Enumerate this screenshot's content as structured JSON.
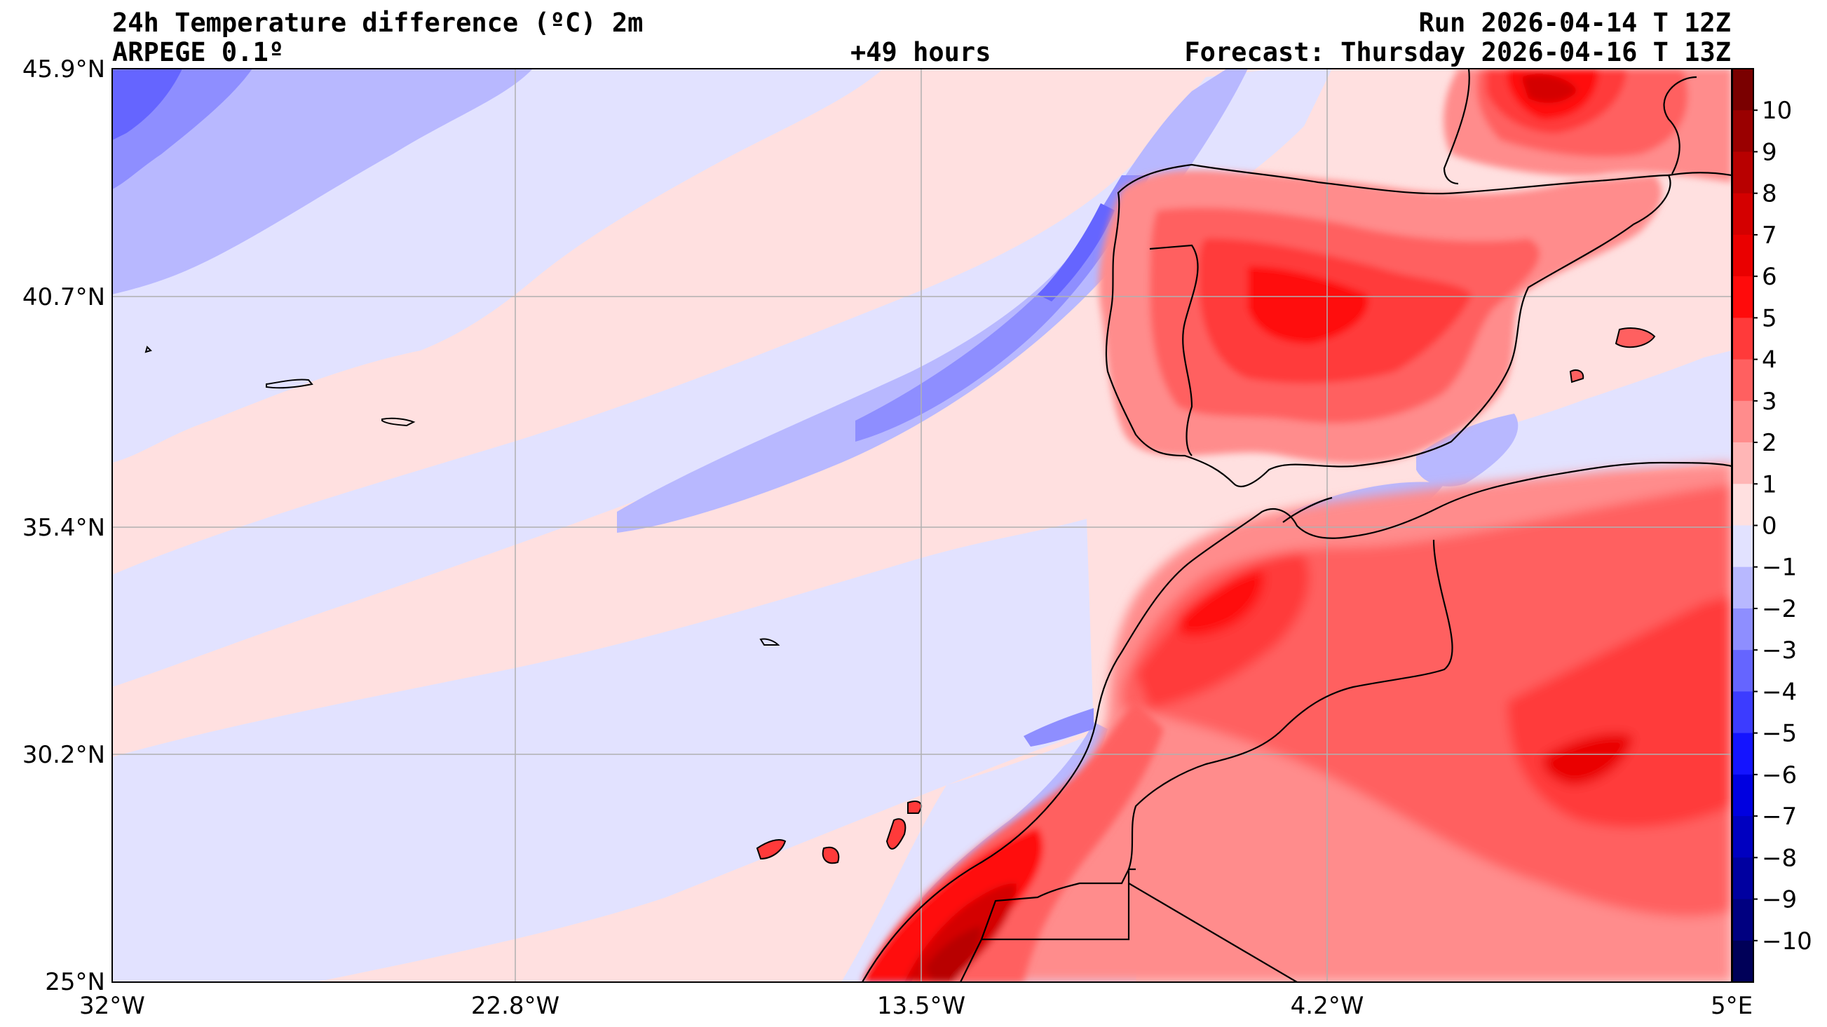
{
  "header": {
    "title": "24h Temperature difference (ºC) 2m",
    "model": "ARPEGE 0.1º",
    "lead": "+49 hours",
    "run": "Run 2026-04-14 T 12Z",
    "forecast": "Forecast: Thursday 2026-04-16 T 13Z"
  },
  "axes": {
    "lat_labels": [
      "45.9°N",
      "40.7°N",
      "35.4°N",
      "30.2°N",
      "25°N"
    ],
    "lon_labels": [
      "32°W",
      "22.8°W",
      "13.5°W",
      "4.2°W",
      "5°E"
    ],
    "extent": {
      "lon_min": -32,
      "lon_max": 5,
      "lat_min": 25,
      "lat_max": 45.9
    },
    "grid": true
  },
  "colorbar": {
    "labels": [
      "10",
      "9",
      "8",
      "7",
      "6",
      "5",
      "4",
      "3",
      "2",
      "1",
      "0",
      "−1",
      "−2",
      "−3",
      "−4",
      "−5",
      "−6",
      "−7",
      "−8",
      "−9",
      "−10"
    ],
    "levels_top_to_bottom": [
      11,
      10,
      9,
      8,
      7,
      6,
      5,
      4,
      3,
      2,
      1,
      0,
      -1,
      -2,
      -3,
      -4,
      -5,
      -6,
      -7,
      -8,
      -9,
      -10,
      -11
    ],
    "colors_top_to_bottom": [
      "#7a0000",
      "#9a0000",
      "#b80000",
      "#d40000",
      "#ea0000",
      "#ff0b0b",
      "#ff3a3a",
      "#ff6060",
      "#ff8c8c",
      "#ffb6b6",
      "#ffe0e0",
      "#e2e2ff",
      "#b8b8ff",
      "#8e8eff",
      "#6565ff",
      "#3c3cff",
      "#1414ff",
      "#0000e0",
      "#0000c0",
      "#0000a0",
      "#000080",
      "#000058"
    ]
  },
  "colors": {
    "neutral_warm": "#ffe0e0",
    "neutral_cool": "#e2e2ff",
    "coast": "#000000",
    "contour": "#888888",
    "grid": "#b0b0b0"
  }
}
